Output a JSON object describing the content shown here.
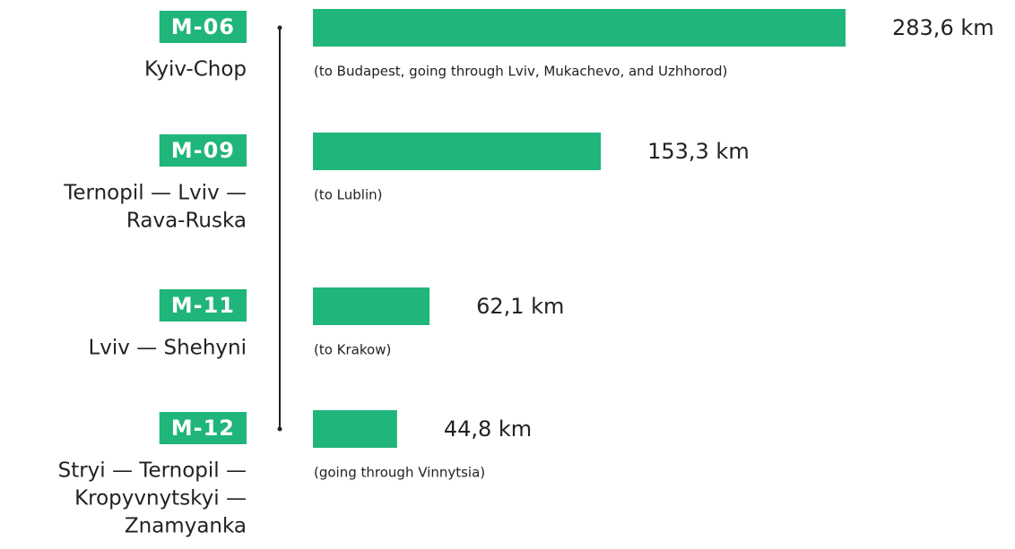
{
  "chart_data": {
    "type": "bar",
    "color": "#20b57a",
    "categories": [
      "M-06",
      "M-09",
      "M-11",
      "M-12"
    ],
    "routes": [
      [
        "Kyiv-Chop"
      ],
      [
        "Ternopil — Lviv —",
        "Rava-Ruska"
      ],
      [
        "Lviv — Shehyni"
      ],
      [
        "Stryi — Ternopil —",
        "Kropyvnytskyi —",
        "Znamyanka"
      ]
    ],
    "notes": [
      "(to Budapest, going through Lviv, Mukachevo, and Uzhhorod)",
      "(to Lublin)",
      "(to Krakow)",
      "(going through Vinnytsia)"
    ],
    "values": [
      283.6,
      153.3,
      62.1,
      44.8
    ],
    "value_labels": [
      "283,6 km",
      "153,3 km",
      "62,1 km",
      "44,8 km"
    ]
  }
}
